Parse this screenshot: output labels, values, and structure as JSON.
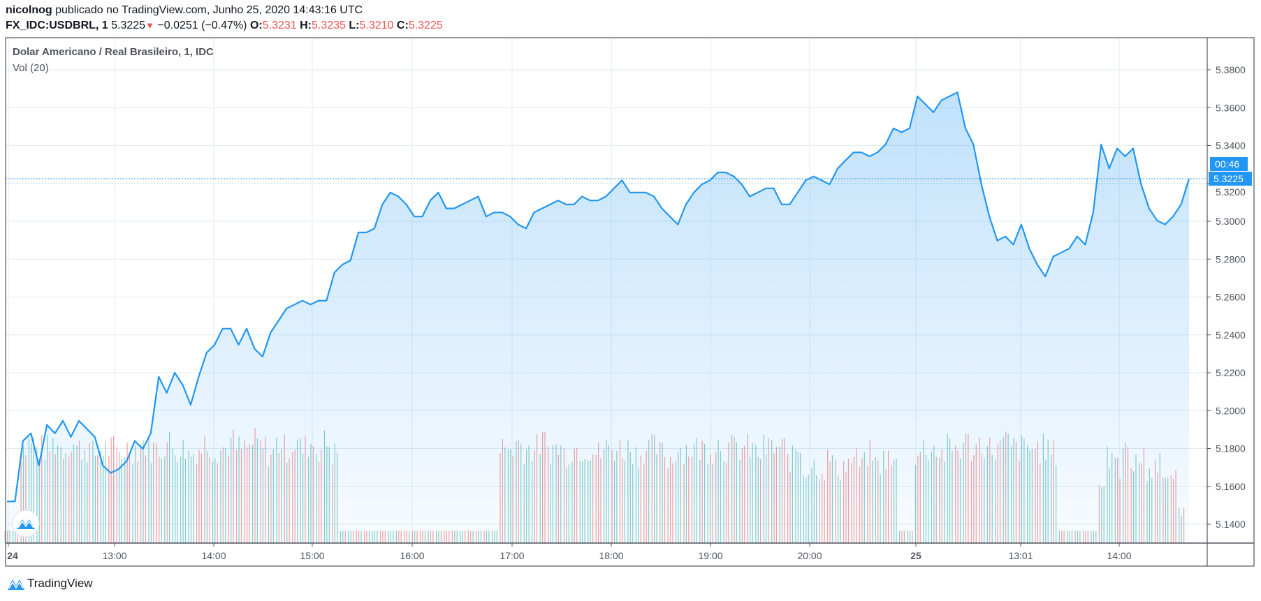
{
  "header": {
    "author": "nicolnog",
    "published_text": "publicado no TradingView.com, Junho 25, 2020 14:43:16 UTC",
    "symbol": "FX_IDC:USDBRL, 1",
    "last": "5.3225",
    "change": "−0.0251 (−0.47%)",
    "o_label": "O:",
    "o": "5.3231",
    "h_label": "H:",
    "h": "5.3235",
    "l_label": "L:",
    "l": "5.3210",
    "c_label": "C:",
    "c": "5.3225",
    "direction_icon": "triangle-down-icon"
  },
  "legend": {
    "title": "Dolar Americano / Real Brasileiro, 1, IDC",
    "volume": "Vol (20)"
  },
  "footer": {
    "brand": "TradingView"
  },
  "colors": {
    "line": "#2196f3",
    "up": "#26a69a",
    "down": "#ef5350",
    "grid": "#e1ecf2",
    "accent_red": "#ef5350"
  },
  "chart_data": {
    "type": "area",
    "ylim": [
      5.132,
      5.396
    ],
    "y_ticks": [
      "5.3800",
      "5.3600",
      "5.3400",
      "5.3200",
      "5.3000",
      "5.2800",
      "5.2600",
      "5.2400",
      "5.2200",
      "5.2000",
      "5.1800",
      "5.1600",
      "5.1400"
    ],
    "x_ticks": [
      {
        "label": "24",
        "bold": true
      },
      {
        "label": "13:00"
      },
      {
        "label": "14:00"
      },
      {
        "label": "15:00"
      },
      {
        "label": "16:00"
      },
      {
        "label": "17:00"
      },
      {
        "label": "18:00"
      },
      {
        "label": "19:00"
      },
      {
        "label": "20:00"
      },
      {
        "label": "25",
        "bold": true
      },
      {
        "label": "13:01"
      },
      {
        "label": "14:00"
      }
    ],
    "last_price_label": "5.3225",
    "countdown_label": "00:46",
    "grid": true,
    "values": [
      5.152,
      5.152,
      5.184,
      5.188,
      5.171,
      5.1925,
      5.188,
      5.1946,
      5.1861,
      5.1946,
      5.1904,
      5.1861,
      5.171,
      5.1671,
      5.1692,
      5.1734,
      5.184,
      5.1798,
      5.188,
      5.2179,
      5.2094,
      5.22,
      5.2136,
      5.2031,
      5.2179,
      5.2306,
      5.2348,
      5.2433,
      5.2433,
      5.2348,
      5.2433,
      5.2327,
      5.2285,
      5.2412,
      5.2475,
      5.2539,
      5.256,
      5.2581,
      5.256,
      5.2581,
      5.2581,
      5.2729,
      5.2771,
      5.2793,
      5.2941,
      5.2941,
      5.2962,
      5.3089,
      5.3152,
      5.3131,
      5.3089,
      5.3025,
      5.3025,
      5.311,
      5.3152,
      5.3068,
      5.3068,
      5.3089,
      5.311,
      5.3131,
      5.3025,
      5.3047,
      5.3047,
      5.3025,
      5.2983,
      5.2962,
      5.3047,
      5.3068,
      5.3089,
      5.311,
      5.3089,
      5.3089,
      5.3131,
      5.311,
      5.311,
      5.3131,
      5.3174,
      5.3216,
      5.3152,
      5.3152,
      5.3152,
      5.3131,
      5.3068,
      5.3025,
      5.2983,
      5.3089,
      5.3152,
      5.3195,
      5.3216,
      5.3258,
      5.3258,
      5.3237,
      5.3195,
      5.3131,
      5.3152,
      5.3174,
      5.3174,
      5.3089,
      5.3089,
      5.3152,
      5.3216,
      5.3237,
      5.3216,
      5.3195,
      5.3279,
      5.3322,
      5.3364,
      5.3364,
      5.3343,
      5.3364,
      5.3406,
      5.3491,
      5.347,
      5.3491,
      5.366,
      5.3618,
      5.3576,
      5.3639,
      5.366,
      5.3681,
      5.3491,
      5.3406,
      5.3195,
      5.3025,
      5.2898,
      5.292,
      5.2877,
      5.2983,
      5.2856,
      5.2771,
      5.2708,
      5.2814,
      5.2835,
      5.2856,
      5.292,
      5.2877,
      5.3047,
      5.3406,
      5.3279,
      5.3385,
      5.3343,
      5.3385,
      5.3195,
      5.3068,
      5.3004,
      5.2983,
      5.3025,
      5.3089,
      5.3225
    ],
    "volume_relative": [
      0.1,
      0.1,
      0.9,
      0.95,
      0.9,
      0.9,
      0.95,
      0.9,
      0.95,
      0.9,
      0.9,
      0.85,
      0.9,
      0.9,
      0.85,
      0.9,
      0.9,
      0.95,
      0.9,
      0.9,
      0.95,
      0.9,
      0.9,
      0.85,
      0.9,
      0.95,
      0.9,
      0.9,
      0.95,
      0.9,
      0.9,
      0.95,
      0.9,
      0.85,
      0.95,
      0.9,
      0.95,
      0.9,
      0.95,
      0.9,
      0.95,
      0.85,
      0.1,
      0.1,
      0.1,
      0.1,
      0.1,
      0.1,
      0.1,
      0.1,
      0.1,
      0.1,
      0.1,
      0.1,
      0.1,
      0.1,
      0.1,
      0.1,
      0.1,
      0.1,
      0.1,
      0.1,
      0.9,
      0.9,
      0.95,
      0.9,
      0.9,
      0.95,
      0.9,
      0.9,
      0.85,
      0.9,
      0.9,
      0.9,
      0.85,
      0.9,
      0.9,
      0.9,
      0.9,
      0.85,
      0.9,
      0.9,
      0.85,
      0.8,
      0.9,
      0.9,
      0.9,
      0.9,
      0.9,
      0.95,
      0.9,
      0.9,
      0.9,
      0.9,
      0.85,
      0.9,
      0.9,
      0.9,
      0.8,
      0.9,
      0.7,
      0.75,
      0.7,
      0.8,
      0.7,
      0.75,
      0.8,
      0.75,
      0.85,
      0.75,
      0.8,
      0.75,
      0.1,
      0.1,
      0.85,
      0.9,
      0.9,
      0.85,
      0.9,
      0.9,
      0.95,
      0.9,
      0.95,
      0.9,
      0.9,
      0.95,
      0.9,
      0.9,
      0.9,
      0.9,
      0.9,
      0.85,
      0.1,
      0.1,
      0.1,
      0.1,
      0.1,
      0.6,
      0.8,
      0.7,
      0.85,
      0.75,
      0.8,
      0.7,
      0.75,
      0.6,
      0.7,
      0.3
    ]
  }
}
